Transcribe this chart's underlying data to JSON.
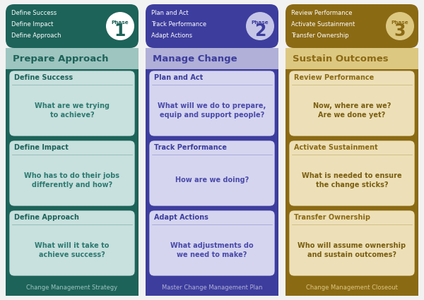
{
  "phases": [
    {
      "id": 1,
      "header_bg": "#1d6359",
      "header_text_color": "#ffffff",
      "subheader_bg": "#9ec5c0",
      "subheader_text_color": "#1d6359",
      "phase_circle_bg": "#ffffff",
      "phase_text_color": "#1d6359",
      "col_border_color": "#1d6359",
      "card_bg": "#c8e0de",
      "card_title_bg": "#c8e0de",
      "card_title_color": "#1d6359",
      "card_question_color": "#2d7a70",
      "footer_bg": "#1d6359",
      "footer_text_color": "#9ec5c0",
      "header_items": [
        "Define Success",
        "Define Impact",
        "Define Approach"
      ],
      "subheader": "Prepare Approach",
      "cards": [
        {
          "title": "Define Success",
          "question": "What are we trying\nto achieve?"
        },
        {
          "title": "Define Impact",
          "question": "Who has to do their jobs\ndifferently and how?"
        },
        {
          "title": "Define Approach",
          "question": "What will it take to\nachieve success?"
        }
      ],
      "footer": "Change Management Strategy"
    },
    {
      "id": 2,
      "header_bg": "#3d3d9e",
      "header_text_color": "#ffffff",
      "subheader_bg": "#b0b0d8",
      "subheader_text_color": "#3d3d9e",
      "phase_circle_bg": "#c5c5e8",
      "phase_text_color": "#3d3d9e",
      "col_border_color": "#3d3d9e",
      "card_bg": "#d5d5f0",
      "card_title_bg": "#d5d5f0",
      "card_title_color": "#3d3d9e",
      "card_question_color": "#4a4aaa",
      "footer_bg": "#3d3d9e",
      "footer_text_color": "#b0b0d8",
      "header_items": [
        "Plan and Act",
        "Track Performance",
        "Adapt Actions"
      ],
      "subheader": "Manage Change",
      "cards": [
        {
          "title": "Plan and Act",
          "question": "What will we do to prepare,\nequip and support people?"
        },
        {
          "title": "Track Performance",
          "question": "How are we doing?"
        },
        {
          "title": "Adapt Actions",
          "question": "What adjustments do\nwe need to make?"
        }
      ],
      "footer": "Master Change Management Plan"
    },
    {
      "id": 3,
      "header_bg": "#8b6a14",
      "header_text_color": "#ffffff",
      "subheader_bg": "#ddc882",
      "subheader_text_color": "#8b6a14",
      "phase_circle_bg": "#ddc882",
      "phase_text_color": "#8b6a14",
      "col_border_color": "#8b6a14",
      "card_bg": "#ede0b8",
      "card_title_bg": "#ede0b8",
      "card_title_color": "#8b6a14",
      "card_question_color": "#7a5e10",
      "footer_bg": "#8b6a14",
      "footer_text_color": "#ddc882",
      "header_items": [
        "Review Performance",
        "Activate Sustainment",
        "Transfer Ownership"
      ],
      "subheader": "Sustain Outcomes",
      "cards": [
        {
          "title": "Review Performance",
          "question": "Now, where are we?\nAre we done yet?"
        },
        {
          "title": "Activate Sustainment",
          "question": "What is needed to ensure\nthe change sticks?"
        },
        {
          "title": "Transfer Ownership",
          "question": "Who will assume ownership\nand sustain outcomes?"
        }
      ],
      "footer": "Change Management Closeout"
    }
  ],
  "bg_color": "#f2f2f2",
  "phase_label": "Phase",
  "fig_width": 6.0,
  "fig_height": 4.25,
  "dpi": 100
}
